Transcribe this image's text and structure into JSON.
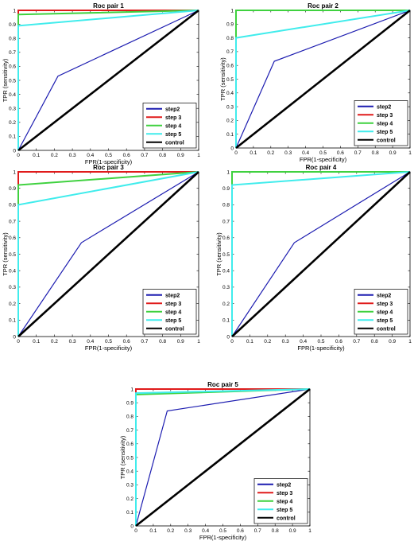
{
  "colors": {
    "step2": "#1c1cb0",
    "step3": "#e01b1b",
    "step4": "#3fd13f",
    "step5": "#40ecec",
    "control": "#000000"
  },
  "chart_data": [
    {
      "type": "line",
      "title": "Roc pair 1",
      "xlabel": "FPR(1-specificity)",
      "ylabel": "TPR (sensitivity)",
      "xlim": [
        0,
        1
      ],
      "ylim": [
        0,
        1
      ],
      "xticks": [
        "0",
        "0.1",
        "0.2",
        "0.3",
        "0.4",
        "0.5",
        "0.6",
        "0.7",
        "0.8",
        "0.9",
        "1"
      ],
      "yticks": [
        "0",
        "0.1",
        "0.2",
        "0.3",
        "0.4",
        "0.5",
        "0.6",
        "0.7",
        "0.8",
        "0.9",
        "1"
      ],
      "legend": "bottom-right",
      "series": [
        {
          "name": "step2",
          "color": "#1c1cb0",
          "x": [
            0,
            0.22,
            1
          ],
          "y": [
            0,
            0.53,
            1
          ]
        },
        {
          "name": "step 3",
          "color": "#e01b1b",
          "x": [
            0,
            0,
            1
          ],
          "y": [
            0,
            1,
            1
          ]
        },
        {
          "name": "step 4",
          "color": "#3fd13f",
          "x": [
            0,
            0,
            1
          ],
          "y": [
            0,
            0.97,
            1
          ]
        },
        {
          "name": "step 5",
          "color": "#40ecec",
          "x": [
            0,
            0,
            1
          ],
          "y": [
            0,
            0.89,
            1
          ]
        },
        {
          "name": "control",
          "color": "#000000",
          "x": [
            0,
            1
          ],
          "y": [
            0,
            1
          ]
        }
      ]
    },
    {
      "type": "line",
      "title": "Roc pair 2",
      "xlabel": "FPR(1-specificity)",
      "ylabel": "TPR (sensitivity)",
      "xlim": [
        0,
        1
      ],
      "ylim": [
        0,
        1
      ],
      "xticks": [
        "0",
        "0.1",
        "0.2",
        "0.3",
        "0.4",
        "0.5",
        "0.6",
        "0.7",
        "0.8",
        "0.9",
        "1"
      ],
      "yticks": [
        "0",
        "0.1",
        "0.2",
        "0.3",
        "0.4",
        "0.5",
        "0.6",
        "0.7",
        "0.8",
        "0.9",
        "1"
      ],
      "legend": "bottom-right",
      "series": [
        {
          "name": "step2",
          "color": "#1c1cb0",
          "x": [
            0,
            0.22,
            1
          ],
          "y": [
            0,
            0.63,
            1
          ]
        },
        {
          "name": "step 3",
          "color": "#e01b1b",
          "x": [
            0,
            0,
            1
          ],
          "y": [
            0,
            1,
            1
          ]
        },
        {
          "name": "step 4",
          "color": "#3fd13f",
          "x": [
            0,
            0,
            1
          ],
          "y": [
            0,
            1,
            1
          ]
        },
        {
          "name": "step 5",
          "color": "#40ecec",
          "x": [
            0,
            0,
            1
          ],
          "y": [
            0,
            0.8,
            1
          ]
        },
        {
          "name": "control",
          "color": "#000000",
          "x": [
            0,
            1
          ],
          "y": [
            0,
            1
          ]
        }
      ]
    },
    {
      "type": "line",
      "title": "Roc pair 3",
      "xlabel": "FPR(1-specificity)",
      "ylabel": "TPR (sensitivity)",
      "xlim": [
        0,
        1
      ],
      "ylim": [
        0,
        1
      ],
      "xticks": [
        "0",
        "0.1",
        "0.2",
        "0.3",
        "0.4",
        "0.5",
        "0.6",
        "0.7",
        "0.8",
        "0.9",
        "1"
      ],
      "yticks": [
        "0",
        "0.1",
        "0.2",
        "0.3",
        "0.4",
        "0.5",
        "0.6",
        "0.7",
        "0.8",
        "0.9",
        "1"
      ],
      "legend": "bottom-right",
      "series": [
        {
          "name": "step2",
          "color": "#1c1cb0",
          "x": [
            0,
            0.35,
            1
          ],
          "y": [
            0,
            0.57,
            1
          ]
        },
        {
          "name": "step 3",
          "color": "#e01b1b",
          "x": [
            0,
            0,
            1
          ],
          "y": [
            0,
            1,
            1
          ]
        },
        {
          "name": "step 4",
          "color": "#3fd13f",
          "x": [
            0,
            0,
            1
          ],
          "y": [
            0,
            0.92,
            1
          ]
        },
        {
          "name": "step 5",
          "color": "#40ecec",
          "x": [
            0,
            0,
            1
          ],
          "y": [
            0,
            0.8,
            1
          ]
        },
        {
          "name": "control",
          "color": "#000000",
          "x": [
            0,
            1
          ],
          "y": [
            0,
            1
          ]
        }
      ]
    },
    {
      "type": "line",
      "title": "Roc pair 4",
      "xlabel": "FPR(1-specificity)",
      "ylabel": "TPR (sensitivity)",
      "xlim": [
        0,
        1
      ],
      "ylim": [
        0,
        1
      ],
      "xticks": [
        "0",
        "0.1",
        "0.2",
        "0.3",
        "0.4",
        "0.5",
        "0.6",
        "0.7",
        "0.8",
        "0.9",
        "1"
      ],
      "yticks": [
        "0",
        "0.1",
        "0.2",
        "0.3",
        "0.4",
        "0.5",
        "0.6",
        "0.7",
        "0.8",
        "0.9",
        "1"
      ],
      "legend": "bottom-right",
      "series": [
        {
          "name": "step2",
          "color": "#1c1cb0",
          "x": [
            0,
            0.35,
            1
          ],
          "y": [
            0,
            0.57,
            1
          ]
        },
        {
          "name": "step 3",
          "color": "#e01b1b",
          "x": [
            0,
            0,
            1
          ],
          "y": [
            0,
            1,
            1
          ]
        },
        {
          "name": "step 4",
          "color": "#3fd13f",
          "x": [
            0,
            0,
            1
          ],
          "y": [
            0,
            1,
            1
          ]
        },
        {
          "name": "step 5",
          "color": "#40ecec",
          "x": [
            0,
            0,
            1
          ],
          "y": [
            0,
            0.92,
            1
          ]
        },
        {
          "name": "control",
          "color": "#000000",
          "x": [
            0,
            1
          ],
          "y": [
            0,
            1
          ]
        }
      ]
    },
    {
      "type": "line",
      "title": "Roc pair 5",
      "xlabel": "FPR(1-specificity)",
      "ylabel": "TPR (sensitivity)",
      "xlim": [
        0,
        1
      ],
      "ylim": [
        0,
        1
      ],
      "xticks": [
        "0",
        "0.1",
        "0.2",
        "0.3",
        "0.4",
        "0.5",
        "0.6",
        "0.7",
        "0.8",
        "0.9",
        "1"
      ],
      "yticks": [
        "0",
        "0.1",
        "0.2",
        "0.3",
        "0.4",
        "0.5",
        "0.6",
        "0.7",
        "0.8",
        "0.9",
        "1"
      ],
      "legend": "bottom-right",
      "series": [
        {
          "name": "step2",
          "color": "#1c1cb0",
          "x": [
            0,
            0.18,
            1
          ],
          "y": [
            0,
            0.84,
            1
          ]
        },
        {
          "name": "step 3",
          "color": "#e01b1b",
          "x": [
            0,
            0,
            1
          ],
          "y": [
            0,
            1,
            1
          ]
        },
        {
          "name": "step 4",
          "color": "#3fd13f",
          "x": [
            0,
            0,
            1
          ],
          "y": [
            0,
            0.96,
            1
          ]
        },
        {
          "name": "step 5",
          "color": "#40ecec",
          "x": [
            0,
            0,
            1
          ],
          "y": [
            0,
            0.97,
            1
          ]
        },
        {
          "name": "control",
          "color": "#000000",
          "x": [
            0,
            1
          ],
          "y": [
            0,
            1
          ]
        }
      ]
    }
  ]
}
